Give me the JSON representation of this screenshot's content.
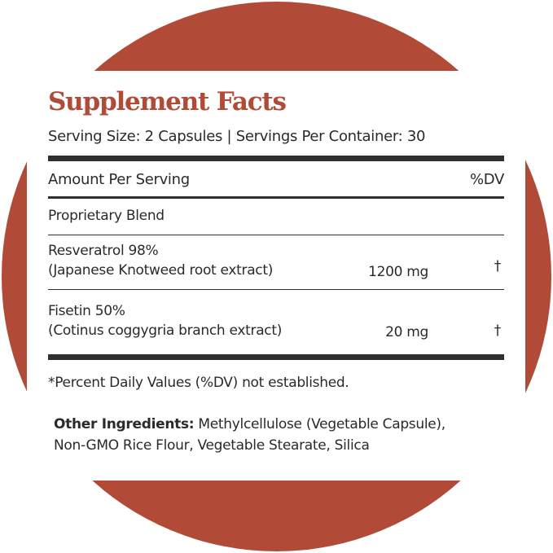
{
  "colors": {
    "circle": "#b14a36",
    "title": "#b14a36"
  },
  "title": "Supplement Facts",
  "serving": "Serving Size: 2 Capsules  | Servings Per Container: 30",
  "header": {
    "amount": "Amount Per Serving",
    "dv": "%DV"
  },
  "blend": "Proprietary Blend",
  "ingredients": [
    {
      "name": "Resveratrol 98%",
      "source": "(Japanese Knotweed root extract)",
      "amount": "1200 mg",
      "dv": "†"
    },
    {
      "name": "Fisetin 50%",
      "source": "(Cotinus coggygria branch extract)",
      "amount": "20 mg",
      "dv": "†"
    }
  ],
  "footnote": "*Percent Daily Values (%DV) not established.",
  "other": {
    "label": "Other Ingredients:",
    "line1": " Methylcellulose (Vegetable Capsule),",
    "line2": "Non-GMO Rice Flour, Vegetable Stearate, Silica"
  }
}
